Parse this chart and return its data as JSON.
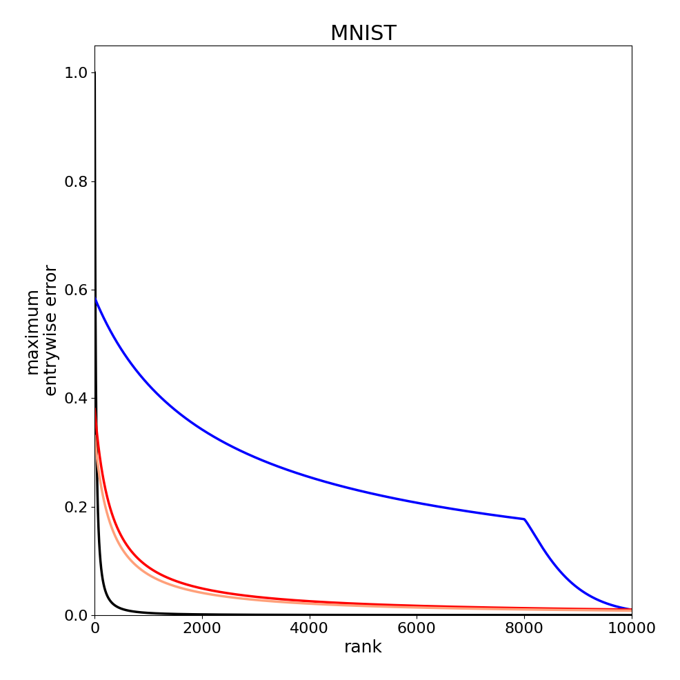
{
  "title": "MNIST",
  "xlabel": "rank",
  "ylabel": "maximum\nentrywise error",
  "xlim": [
    0,
    10000
  ],
  "ylim": [
    0.0,
    1.05
  ],
  "title_fontsize": 22,
  "label_fontsize": 18,
  "tick_fontsize": 16,
  "line_width": 2.5,
  "colors": [
    "#000000",
    "#0000ff",
    "#ff0000",
    "#ffa07a"
  ],
  "black_params": [
    1.0,
    0.03,
    1.6
  ],
  "blue_params": [
    0.585,
    0.0006,
    0.68
  ],
  "red_params": [
    0.38,
    0.003,
    1.05
  ],
  "salmon_params": [
    0.33,
    0.003,
    1.07
  ],
  "xticks": [
    0,
    2000,
    4000,
    6000,
    8000,
    10000
  ],
  "yticks": [
    0.0,
    0.2,
    0.4,
    0.6,
    0.8,
    1.0
  ]
}
